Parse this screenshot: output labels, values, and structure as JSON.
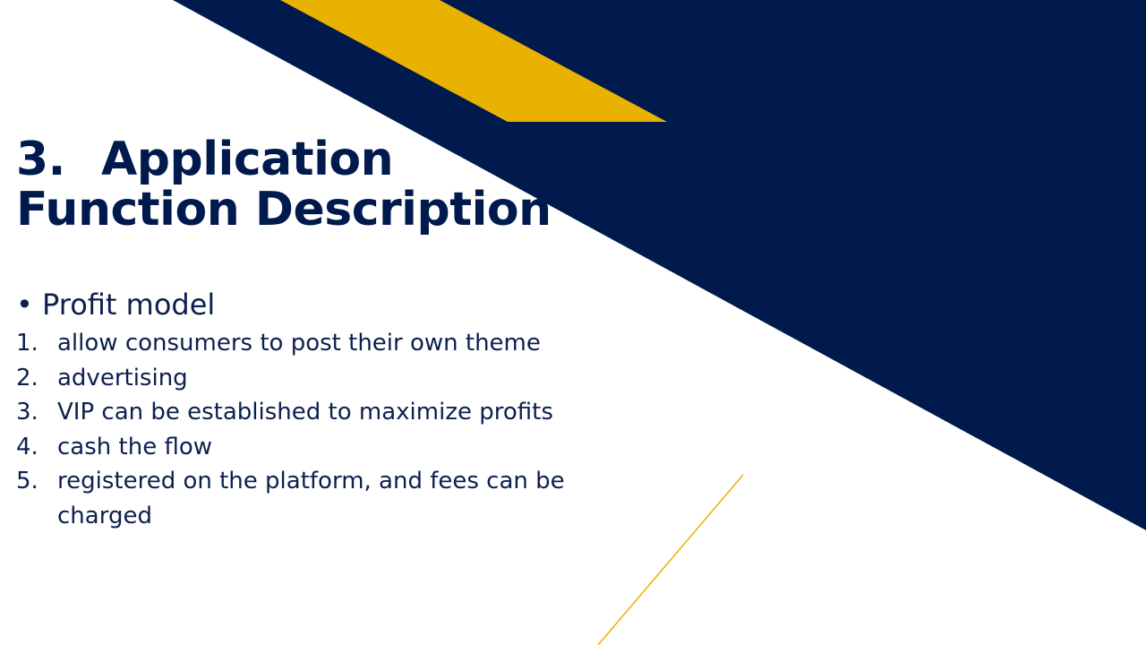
{
  "slide": {
    "title_number": "3.",
    "title_line1": "Application",
    "title_line2": "Function Description",
    "bullet": "Profit model",
    "items": [
      {
        "n": "1.",
        "text": "allow consumers to post their own theme"
      },
      {
        "n": "2.",
        "text": "advertising"
      },
      {
        "n": "3.",
        "text": "VIP can be established to maximize profits"
      },
      {
        "n": "4.",
        "text": "cash the flow"
      },
      {
        "n": "5.",
        "text": "registered on the platform, and fees can be charged"
      }
    ]
  },
  "colors": {
    "navy": "#001a4d",
    "gold": "#e9b100",
    "text": "#0c1f4f"
  }
}
